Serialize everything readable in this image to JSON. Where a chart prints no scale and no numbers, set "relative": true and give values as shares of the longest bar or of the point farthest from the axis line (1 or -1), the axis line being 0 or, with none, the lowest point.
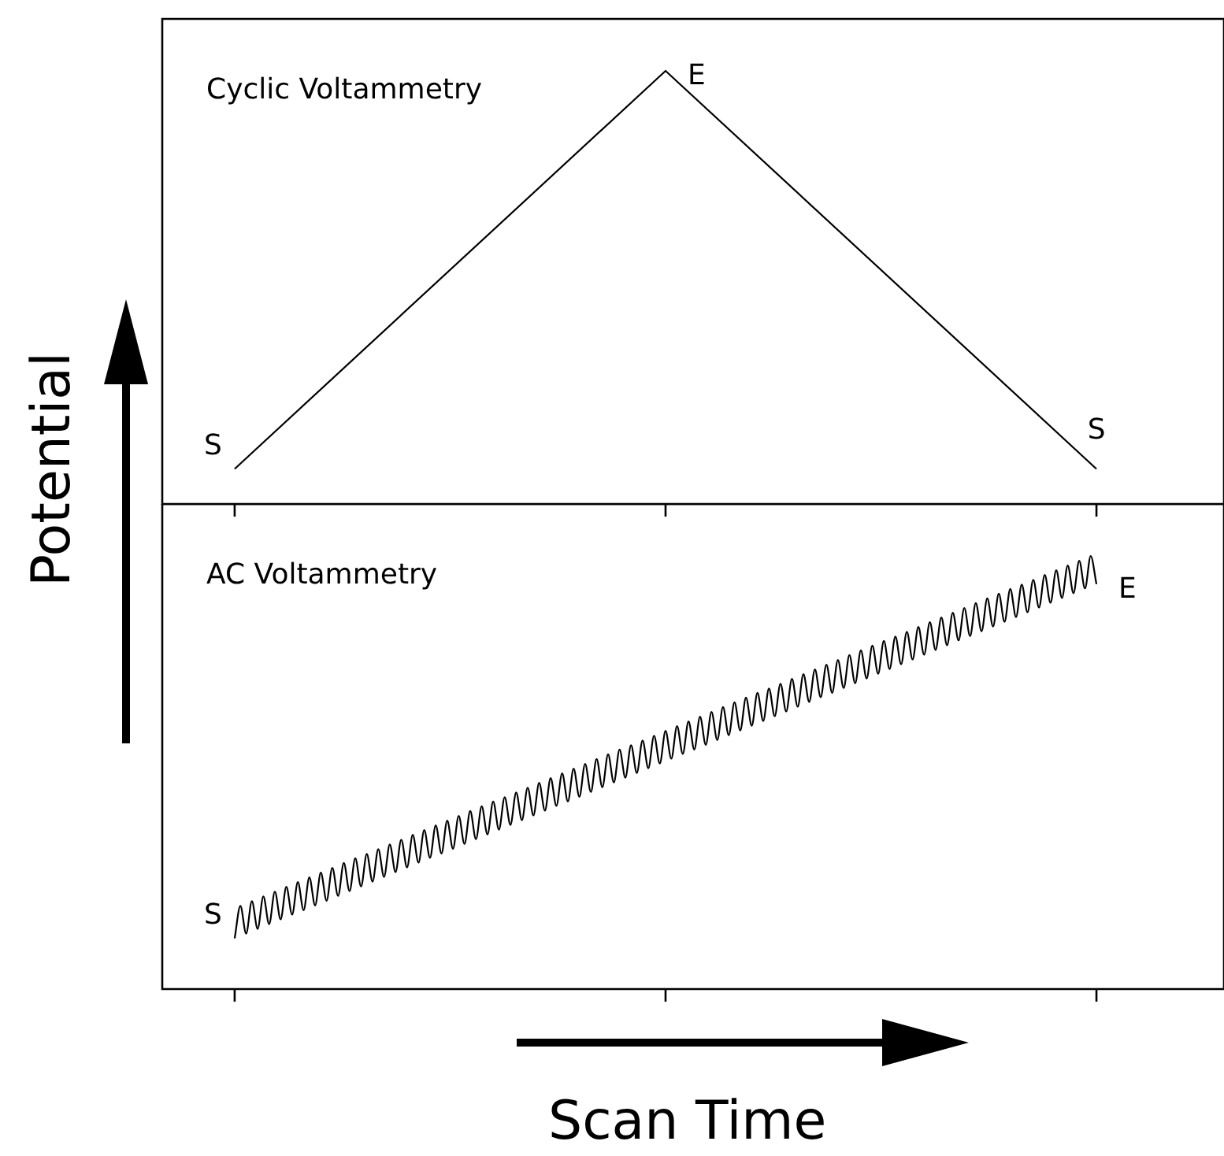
{
  "chart_data": [
    {
      "type": "line",
      "title": "Cyclic Voltammetry",
      "relative": true,
      "legend": false,
      "categories": [
        null,
        null,
        null
      ],
      "series": [
        {
          "color": "#000000",
          "values": [
            0.081,
            1,
            0.081
          ]
        }
      ],
      "annotations": [
        "S",
        "E",
        "S"
      ]
    },
    {
      "type": "line",
      "title": "AC Voltammetry",
      "relative": true,
      "legend": false,
      "xlabel": "Scan Time",
      "ylabel": "Potential",
      "categories": [
        null,
        null,
        null,
        null,
        null,
        null,
        null,
        null,
        null,
        null,
        null,
        null,
        null,
        null,
        null,
        null,
        null,
        null,
        null,
        null,
        null,
        null,
        null,
        null,
        null,
        null,
        null,
        null,
        null,
        null,
        null,
        null,
        null,
        null,
        null,
        null,
        null,
        null,
        null,
        null,
        null,
        null,
        null,
        null,
        null,
        null,
        null,
        null,
        null,
        null,
        null,
        null,
        null,
        null,
        null,
        null,
        null,
        null,
        null,
        null,
        null,
        null,
        null,
        null,
        null,
        null,
        null,
        null,
        null,
        null,
        null,
        null,
        null,
        null,
        null,
        null,
        null,
        null,
        null,
        null,
        null,
        null,
        null,
        null,
        null,
        null,
        null,
        null,
        null,
        null,
        null,
        null,
        null,
        null,
        null,
        null,
        null,
        null,
        null,
        null,
        null,
        null,
        null,
        null,
        null,
        null,
        null,
        null,
        null,
        null,
        null,
        null,
        null,
        null,
        null,
        null,
        null,
        null,
        null,
        null,
        null,
        null,
        null,
        null,
        null,
        null,
        null,
        null,
        null,
        null,
        null,
        null,
        null,
        null,
        null,
        null,
        null,
        null,
        null,
        null,
        null,
        null,
        null,
        null,
        null,
        null,
        null,
        null,
        null,
        null,
        null
      ],
      "series": [
        {
          "color": "#000000",
          "values": [
            0.117,
            0.192,
            0.128,
            0.203,
            0.139,
            0.214,
            0.15,
            0.225,
            0.161,
            0.236,
            0.172,
            0.247,
            0.182,
            0.258,
            0.193,
            0.269,
            0.204,
            0.28,
            0.215,
            0.291,
            0.226,
            0.302,
            0.237,
            0.312,
            0.248,
            0.323,
            0.259,
            0.334,
            0.27,
            0.345,
            0.281,
            0.356,
            0.292,
            0.367,
            0.303,
            0.378,
            0.313,
            0.389,
            0.324,
            0.4,
            0.335,
            0.411,
            0.346,
            0.422,
            0.357,
            0.433,
            0.368,
            0.443,
            0.379,
            0.454,
            0.39,
            0.465,
            0.401,
            0.476,
            0.412,
            0.487,
            0.423,
            0.498,
            0.433,
            0.509,
            0.444,
            0.52,
            0.455,
            0.531,
            0.466,
            0.542,
            0.477,
            0.553,
            0.488,
            0.563,
            0.499,
            0.574,
            0.51,
            0.585,
            0.521,
            0.596,
            0.532,
            0.607,
            0.543,
            0.618,
            0.553,
            0.629,
            0.564,
            0.64,
            0.575,
            0.651,
            0.586,
            0.662,
            0.597,
            0.673,
            0.608,
            0.684,
            0.619,
            0.694,
            0.63,
            0.705,
            0.641,
            0.716,
            0.652,
            0.727,
            0.663,
            0.738,
            0.674,
            0.749,
            0.684,
            0.76,
            0.695,
            0.771,
            0.706,
            0.782,
            0.717,
            0.793,
            0.728,
            0.804,
            0.739,
            0.814,
            0.75,
            0.825,
            0.761,
            0.836,
            0.772,
            0.847,
            0.783,
            0.858,
            0.794,
            0.869,
            0.805,
            0.88,
            0.815,
            0.891,
            0.826,
            0.902,
            0.837,
            0.913,
            0.848,
            0.924,
            0.859,
            0.934,
            0.87,
            0.945,
            0.881,
            0.956,
            0.892,
            0.967,
            0.903,
            0.978,
            0.914,
            0.989,
            0.925,
            1.0,
            0.935
          ]
        }
      ],
      "annotations": [
        "S",
        "E"
      ]
    }
  ]
}
